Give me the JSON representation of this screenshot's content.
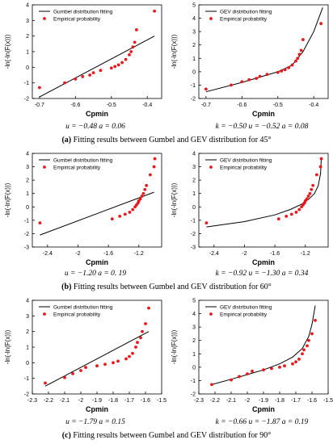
{
  "chart_data": [
    {
      "type": "scatter",
      "panel": "a-left",
      "xlabel": "Cpmin",
      "ylabel": "-ln(-ln(F(x)))",
      "xlim": [
        -0.72,
        -0.36
      ],
      "ylim": [
        -2,
        4
      ],
      "xticks": [
        -0.7,
        -0.6,
        -0.5,
        -0.4
      ],
      "yticks": [
        -2,
        -1,
        0,
        1,
        2,
        3,
        4
      ],
      "legend_position": "top-left",
      "series": [
        {
          "name": "Gumbel distribution fitting",
          "kind": "line",
          "color": "#000000",
          "x": [
            -0.7,
            -0.38
          ],
          "y": [
            -1.9,
            2.0
          ]
        },
        {
          "name": "Empirical probability",
          "kind": "points",
          "color": "#e8191c",
          "x": [
            -0.7,
            -0.63,
            -0.6,
            -0.58,
            -0.56,
            -0.55,
            -0.53,
            -0.5,
            -0.49,
            -0.48,
            -0.47,
            -0.46,
            -0.45,
            -0.445,
            -0.44,
            -0.435,
            -0.43,
            -0.38
          ],
          "y": [
            -1.3,
            -1.0,
            -0.75,
            -0.6,
            -0.5,
            -0.35,
            -0.2,
            -0.05,
            0.05,
            0.15,
            0.3,
            0.5,
            0.8,
            1.0,
            1.3,
            1.6,
            2.4,
            3.6
          ]
        }
      ]
    },
    {
      "type": "scatter",
      "panel": "a-right",
      "xlabel": "Cpmin",
      "ylabel": "-ln(-ln(F(x)))",
      "xlim": [
        -0.72,
        -0.36
      ],
      "ylim": [
        -2,
        5
      ],
      "xticks": [
        -0.7,
        -0.6,
        -0.5,
        -0.4
      ],
      "yticks": [
        -2,
        -1,
        0,
        1,
        2,
        3,
        4,
        5
      ],
      "legend_position": "top-left",
      "series": [
        {
          "name": "GEV distribution fitting",
          "kind": "line",
          "color": "#000000",
          "x": [
            -0.7,
            -0.6,
            -0.5,
            -0.46,
            -0.43,
            -0.4,
            -0.375
          ],
          "y": [
            -1.5,
            -0.8,
            0.0,
            0.5,
            1.5,
            3.0,
            4.8
          ]
        },
        {
          "name": "Empirical probability",
          "kind": "points",
          "color": "#e8191c",
          "x": [
            -0.7,
            -0.63,
            -0.6,
            -0.58,
            -0.56,
            -0.55,
            -0.53,
            -0.5,
            -0.49,
            -0.48,
            -0.47,
            -0.46,
            -0.45,
            -0.445,
            -0.44,
            -0.435,
            -0.43,
            -0.38
          ],
          "y": [
            -1.3,
            -1.0,
            -0.75,
            -0.6,
            -0.5,
            -0.35,
            -0.2,
            -0.05,
            0.05,
            0.15,
            0.3,
            0.5,
            0.8,
            1.0,
            1.3,
            1.6,
            2.4,
            3.6
          ]
        }
      ]
    },
    {
      "type": "scatter",
      "panel": "b-left",
      "xlabel": "Cpmin",
      "ylabel": "-ln(-ln(F(x)))",
      "xlim": [
        -2.6,
        -0.9
      ],
      "ylim": [
        -3,
        4
      ],
      "xticks": [
        -2.4,
        -2.0,
        -1.6,
        -1.2
      ],
      "yticks": [
        -3,
        -2,
        -1,
        0,
        1,
        2,
        3,
        4
      ],
      "legend_position": "top-left",
      "series": [
        {
          "name": "Gumbel distribution fitting",
          "kind": "line",
          "color": "#000000",
          "x": [
            -2.5,
            -1.0
          ],
          "y": [
            -2.1,
            1.1
          ]
        },
        {
          "name": "Empirical probability",
          "kind": "points",
          "color": "#e8191c",
          "x": [
            -2.5,
            -1.55,
            -1.45,
            -1.38,
            -1.32,
            -1.28,
            -1.25,
            -1.23,
            -1.21,
            -1.2,
            -1.18,
            -1.16,
            -1.14,
            -1.12,
            -1.1,
            -1.05,
            -1.0,
            -0.99
          ],
          "y": [
            -1.2,
            -0.9,
            -0.7,
            -0.55,
            -0.4,
            -0.2,
            0.0,
            0.15,
            0.3,
            0.45,
            0.6,
            0.8,
            1.0,
            1.3,
            1.6,
            2.4,
            3.0,
            3.6
          ]
        }
      ]
    },
    {
      "type": "scatter",
      "panel": "b-right",
      "xlabel": "Cpmin",
      "ylabel": "-ln(-ln(F(x)))",
      "xlim": [
        -2.6,
        -0.9
      ],
      "ylim": [
        -3,
        4
      ],
      "xticks": [
        -2.4,
        -2.0,
        -1.6,
        -1.2
      ],
      "yticks": [
        -3,
        -2,
        -1,
        0,
        1,
        2,
        3,
        4
      ],
      "legend_position": "top-left",
      "series": [
        {
          "name": "GEV distribution fitting",
          "kind": "line",
          "color": "#000000",
          "x": [
            -2.5,
            -2.0,
            -1.6,
            -1.4,
            -1.25,
            -1.15,
            -1.08,
            -1.03,
            -1.0,
            -0.99
          ],
          "y": [
            -1.5,
            -1.1,
            -0.6,
            -0.2,
            0.2,
            0.6,
            1.0,
            1.6,
            2.5,
            3.6
          ]
        },
        {
          "name": "Empirical probability",
          "kind": "points",
          "color": "#e8191c",
          "x": [
            -2.5,
            -1.55,
            -1.45,
            -1.38,
            -1.32,
            -1.28,
            -1.25,
            -1.23,
            -1.21,
            -1.2,
            -1.18,
            -1.16,
            -1.14,
            -1.12,
            -1.1,
            -1.05,
            -1.0,
            -0.99
          ],
          "y": [
            -1.2,
            -0.9,
            -0.7,
            -0.55,
            -0.4,
            -0.2,
            0.0,
            0.15,
            0.3,
            0.45,
            0.6,
            0.8,
            1.0,
            1.3,
            1.6,
            2.4,
            3.0,
            3.6
          ]
        }
      ]
    },
    {
      "type": "scatter",
      "panel": "c-left",
      "xlabel": "Cpmin",
      "ylabel": "-ln(-ln(F(x)))",
      "xlim": [
        -2.3,
        -1.5
      ],
      "ylim": [
        -2,
        4
      ],
      "xticks": [
        -2.3,
        -2.2,
        -2.1,
        -2.0,
        -1.9,
        -1.8,
        -1.7,
        -1.6,
        -1.5
      ],
      "yticks": [
        -2,
        -1,
        0,
        1,
        2,
        3,
        4
      ],
      "legend_position": "top-left",
      "series": [
        {
          "name": "Gumbel distribution fitting",
          "kind": "line",
          "color": "#000000",
          "x": [
            -2.22,
            -1.58
          ],
          "y": [
            -1.5,
            2.0
          ]
        },
        {
          "name": "Empirical probability",
          "kind": "points",
          "color": "#e8191c",
          "x": [
            -2.22,
            -2.1,
            -2.05,
            -2.0,
            -1.97,
            -1.9,
            -1.85,
            -1.8,
            -1.77,
            -1.72,
            -1.7,
            -1.68,
            -1.66,
            -1.65,
            -1.63,
            -1.62,
            -1.6,
            -1.58
          ],
          "y": [
            -1.3,
            -0.95,
            -0.7,
            -0.5,
            -0.3,
            -0.2,
            -0.1,
            0.0,
            0.1,
            0.25,
            0.4,
            0.6,
            1.0,
            1.3,
            1.6,
            2.0,
            2.5,
            3.5
          ]
        }
      ]
    },
    {
      "type": "scatter",
      "panel": "c-right",
      "xlabel": "Cpmin",
      "ylabel": "-ln(-ln(F(x)))",
      "xlim": [
        -2.3,
        -1.5
      ],
      "ylim": [
        -2,
        5
      ],
      "xticks": [
        -2.3,
        -2.2,
        -2.1,
        -2.0,
        -1.9,
        -1.8,
        -1.7,
        -1.6,
        -1.5
      ],
      "yticks": [
        -2,
        -1,
        0,
        1,
        2,
        3,
        4,
        5
      ],
      "legend_position": "top-left",
      "series": [
        {
          "name": "GEV distribution fitting",
          "kind": "line",
          "color": "#000000",
          "x": [
            -2.22,
            -2.1,
            -2.0,
            -1.9,
            -1.8,
            -1.72,
            -1.66,
            -1.62,
            -1.6,
            -1.58
          ],
          "y": [
            -1.3,
            -0.9,
            -0.55,
            -0.2,
            0.25,
            0.75,
            1.4,
            2.3,
            3.2,
            4.6
          ]
        },
        {
          "name": "Empirical probability",
          "kind": "points",
          "color": "#e8191c",
          "x": [
            -2.22,
            -2.1,
            -2.05,
            -2.0,
            -1.97,
            -1.9,
            -1.85,
            -1.8,
            -1.77,
            -1.72,
            -1.7,
            -1.68,
            -1.66,
            -1.65,
            -1.63,
            -1.62,
            -1.6,
            -1.58
          ],
          "y": [
            -1.3,
            -0.95,
            -0.7,
            -0.5,
            -0.3,
            -0.2,
            -0.1,
            0.0,
            0.1,
            0.25,
            0.4,
            0.6,
            1.0,
            1.3,
            1.6,
            2.0,
            2.5,
            3.5
          ]
        }
      ]
    }
  ],
  "captions": {
    "a": {
      "left_params": "u = −0.48 a = 0.06",
      "right_params": "k = −0.50 u = −0.52 a = 0.08",
      "label": "(a)",
      "title": "Fitting results between Gumbel and GEV distribution for 45°"
    },
    "b": {
      "left_params": "u = −1.20 a = 0. 19",
      "right_params": "k = −0.92 u = −1.30 a = 0.34",
      "label": "(b)",
      "title": "Fitting results between Gumbel and GEV distribution for 60°"
    },
    "c": {
      "left_params": "u = −1.79 a = 0.15",
      "right_params": "k = −0.66 u = −1.87 a = 0.19",
      "label": "(c)",
      "title": "Fitting results between Gumbel and GEV distribution for 90°"
    }
  }
}
